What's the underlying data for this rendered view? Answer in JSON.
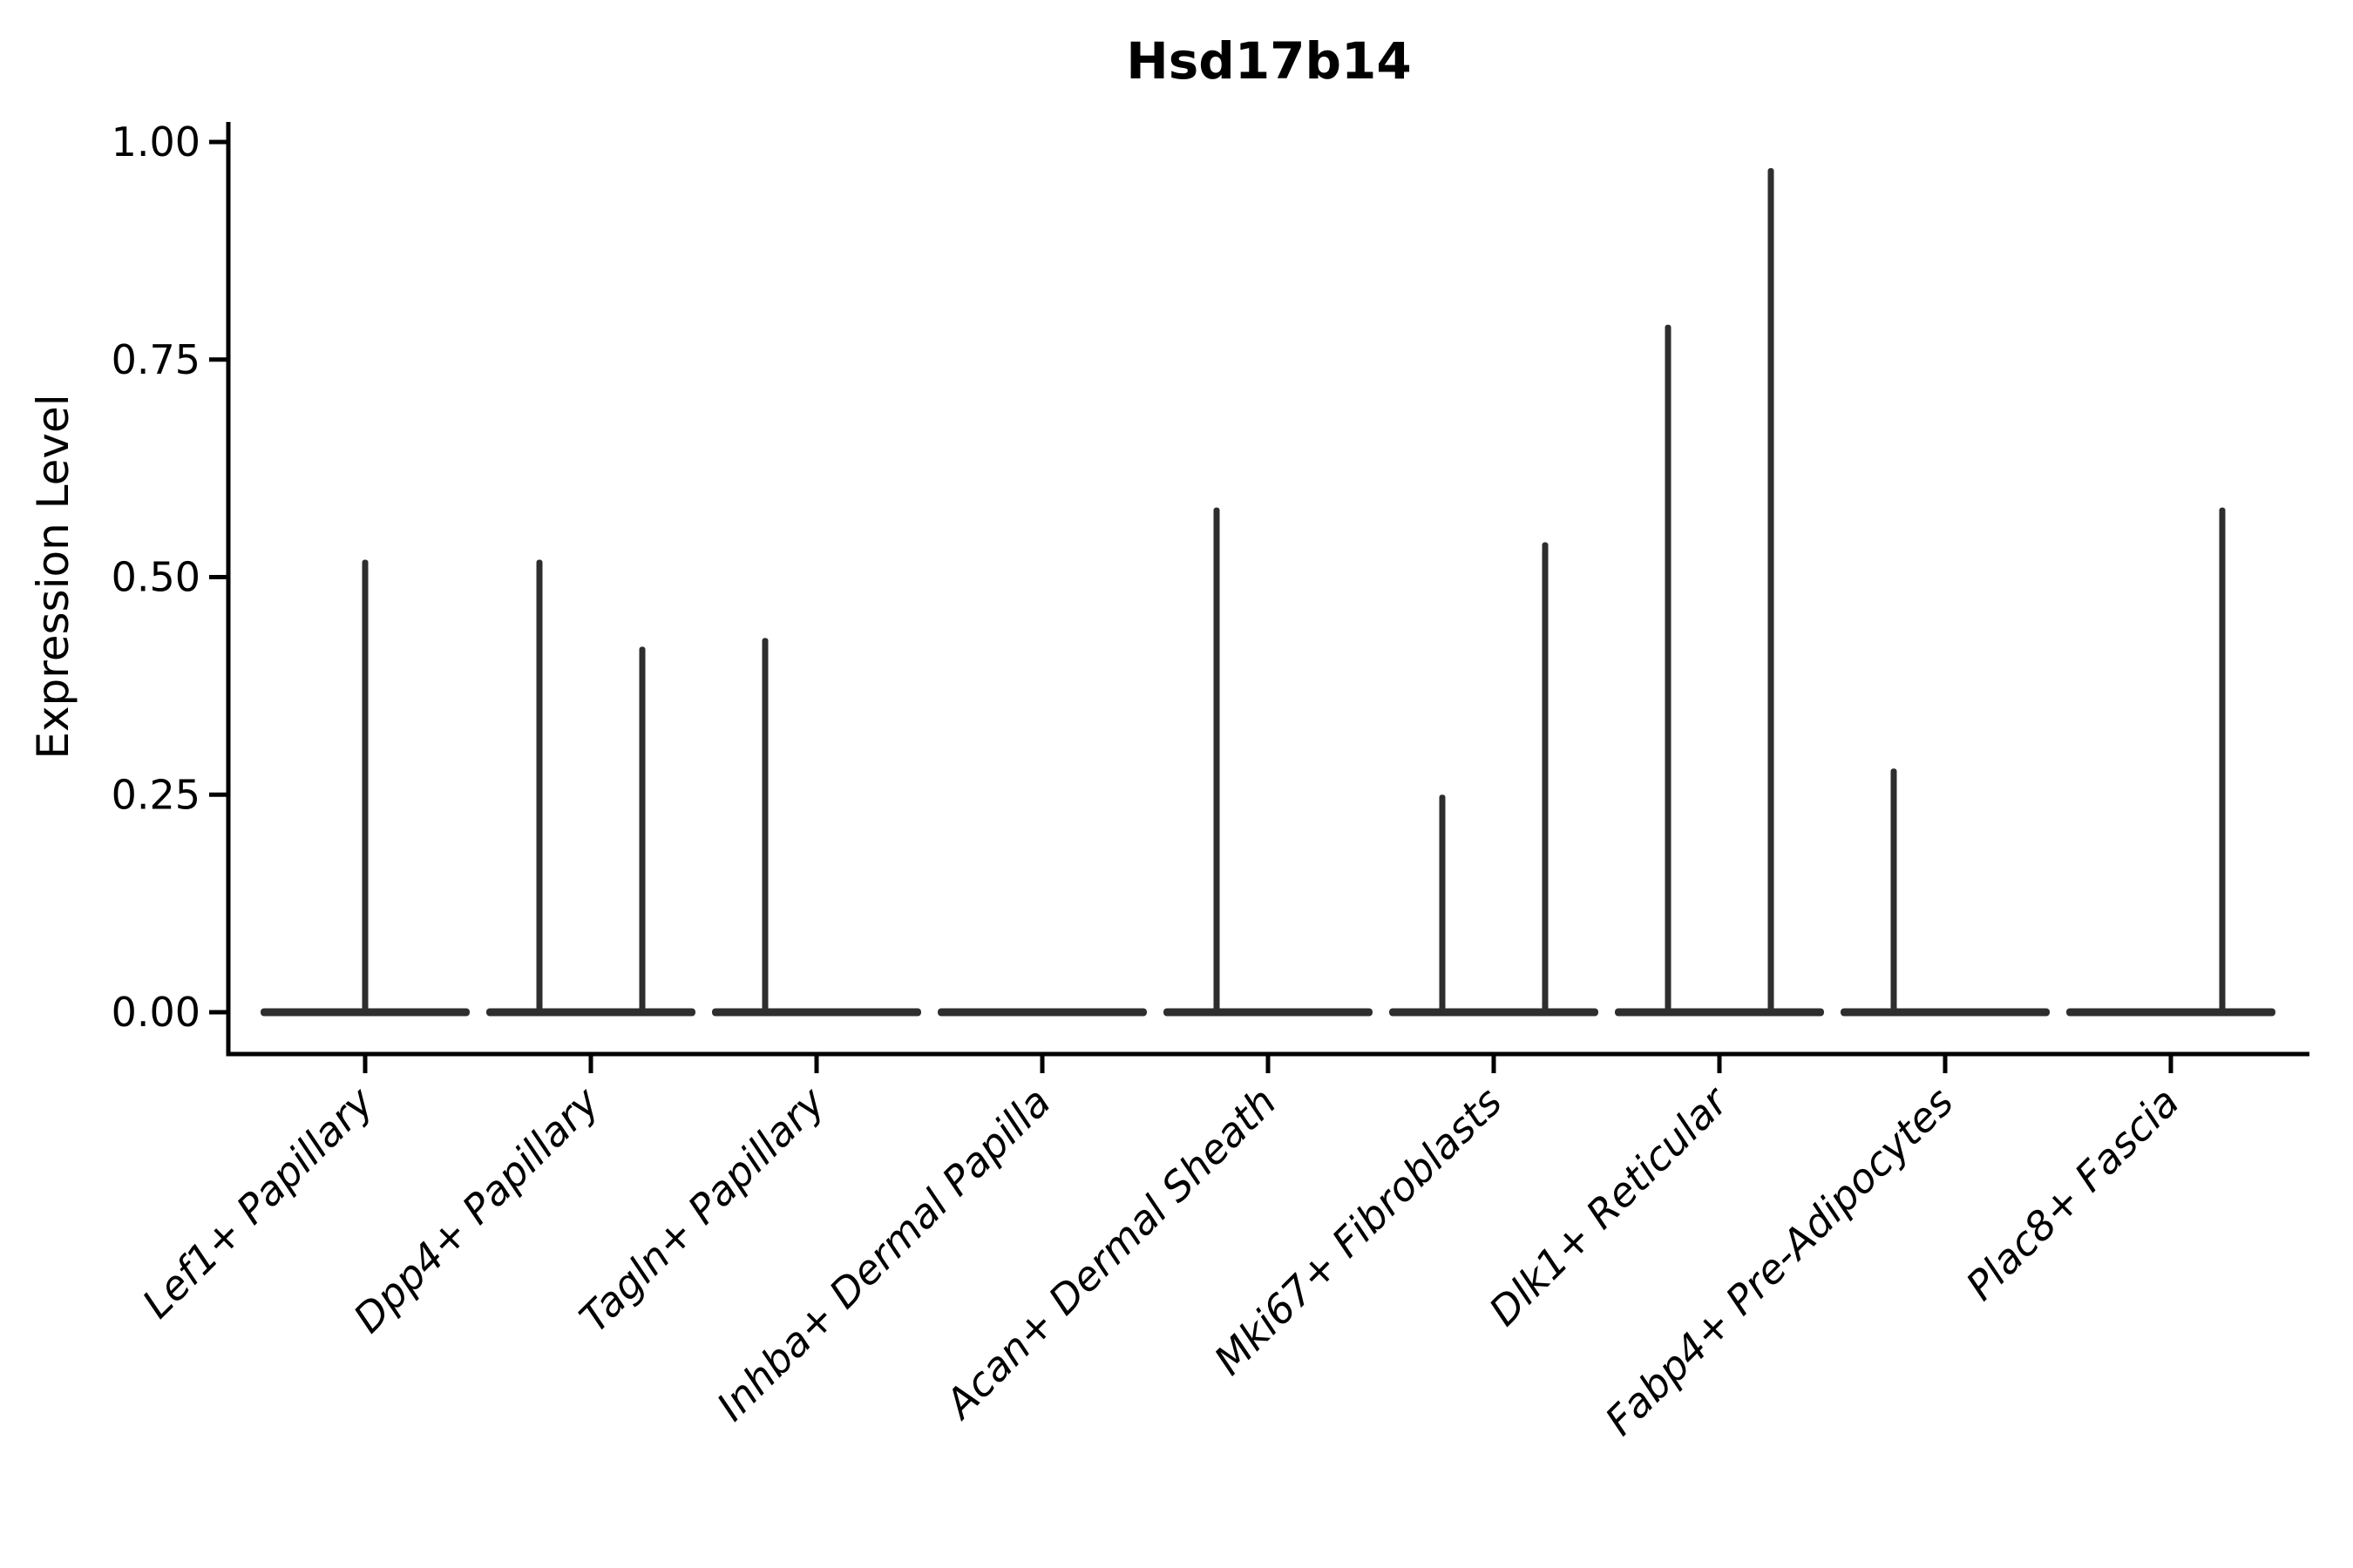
{
  "chart_data": {
    "type": "violin",
    "title": "Hsd17b14",
    "ylabel": "Expression Level",
    "xlabel": "",
    "ylim": [
      0.0,
      1.0
    ],
    "ytick_values": [
      0.0,
      0.25,
      0.5,
      0.75,
      1.0
    ],
    "ytick_labels": [
      "0.00",
      "0.25",
      "0.50",
      "0.75",
      "1.00"
    ],
    "grid": false,
    "legend": "none",
    "categories": [
      "Lef1+ Papillary",
      "Dpp4+ Papillary",
      "Tagln+ Papillary",
      "Inhba+ Dermal Papilla",
      "Acan+ Dermal Sheath",
      "Mki67+ Fibroblasts",
      "Dlk1+ Reticular",
      "Fabp4+ Pre-Adipocytes",
      "Plac8+ Fascia"
    ],
    "violins": [
      {
        "category": "Lef1+ Papillary",
        "base_at_zero": true,
        "spikes": [
          {
            "position": "center",
            "max_value": 0.52
          }
        ]
      },
      {
        "category": "Dpp4+ Papillary",
        "base_at_zero": true,
        "spikes": [
          {
            "position": "left",
            "max_value": 0.52
          },
          {
            "position": "right",
            "max_value": 0.42
          }
        ]
      },
      {
        "category": "Tagln+ Papillary",
        "base_at_zero": true,
        "spikes": [
          {
            "position": "left",
            "max_value": 0.43
          }
        ]
      },
      {
        "category": "Inhba+ Dermal Papilla",
        "base_at_zero": true,
        "spikes": []
      },
      {
        "category": "Acan+ Dermal Sheath",
        "base_at_zero": true,
        "spikes": [
          {
            "position": "left",
            "max_value": 0.58
          }
        ]
      },
      {
        "category": "Mki67+ Fibroblasts",
        "base_at_zero": true,
        "spikes": [
          {
            "position": "left",
            "max_value": 0.25
          },
          {
            "position": "right",
            "max_value": 0.54
          }
        ]
      },
      {
        "category": "Dlk1+ Reticular",
        "base_at_zero": true,
        "spikes": [
          {
            "position": "left",
            "max_value": 0.79
          },
          {
            "position": "right",
            "max_value": 0.97
          }
        ]
      },
      {
        "category": "Fabp4+ Pre-Adipocytes",
        "base_at_zero": true,
        "spikes": [
          {
            "position": "left",
            "max_value": 0.28
          }
        ]
      },
      {
        "category": "Plac8+ Fascia",
        "base_at_zero": true,
        "spikes": [
          {
            "position": "right",
            "max_value": 0.58
          }
        ]
      }
    ],
    "colors": {
      "violin": "#2e2e2e",
      "axis": "#000000",
      "text": "#000000",
      "background": "#ffffff"
    }
  }
}
